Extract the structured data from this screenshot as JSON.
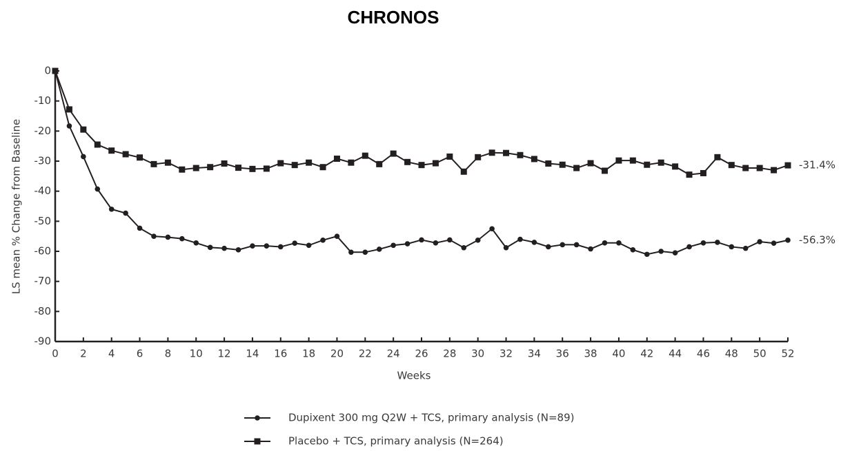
{
  "chart_data": {
    "type": "line",
    "title": "CHRONOS",
    "x_label": "Weeks",
    "y_label": "LS mean % Change from Baseline",
    "x": [
      0,
      1,
      2,
      3,
      4,
      5,
      6,
      7,
      8,
      9,
      10,
      11,
      12,
      13,
      14,
      15,
      16,
      17,
      18,
      19,
      20,
      21,
      22,
      23,
      24,
      25,
      26,
      27,
      28,
      29,
      30,
      31,
      32,
      33,
      34,
      35,
      36,
      37,
      38,
      39,
      40,
      41,
      42,
      43,
      44,
      45,
      46,
      47,
      48,
      49,
      50,
      51,
      52
    ],
    "series": [
      {
        "name": "Dupixent 300 mg Q2W + TCS, primary analysis (N=89)",
        "color": "#231f20",
        "marker": "circle",
        "end_label": "-56.3%",
        "values": [
          0,
          -18.3,
          -28.5,
          -39.3,
          -46,
          -47.3,
          -52.3,
          -55,
          -55.3,
          -55.8,
          -57.2,
          -58.7,
          -59,
          -59.5,
          -58.2,
          -58.2,
          -58.5,
          -57.3,
          -58,
          -56.3,
          -55,
          -60.3,
          -60.3,
          -59.3,
          -58,
          -57.5,
          -56.2,
          -57.2,
          -56.2,
          -58.8,
          -56.3,
          -52.5,
          -58.8,
          -56,
          -57,
          -58.5,
          -57.8,
          -57.8,
          -59.2,
          -57.2,
          -57.2,
          -59.5,
          -61,
          -60,
          -60.5,
          -58.5,
          -57.2,
          -57,
          -58.5,
          -59,
          -56.8,
          -57.3,
          -56.3
        ]
      },
      {
        "name": "Placebo + TCS, primary analysis (N=264)",
        "color": "#231f20",
        "marker": "square",
        "end_label": "-31.4%",
        "values": [
          0,
          -12.8,
          -19.5,
          -24.5,
          -26.5,
          -27.7,
          -28.8,
          -31,
          -30.5,
          -32.8,
          -32.3,
          -32,
          -30.8,
          -32.2,
          -32.6,
          -32.5,
          -30.7,
          -31.3,
          -30.5,
          -32,
          -29.2,
          -30.5,
          -28.2,
          -31,
          -27.5,
          -30.3,
          -31.3,
          -30.7,
          -28.5,
          -33.5,
          -28.7,
          -27.2,
          -27.3,
          -28,
          -29.3,
          -30.8,
          -31.2,
          -32.3,
          -30.7,
          -33.2,
          -29.8,
          -29.8,
          -31.2,
          -30.5,
          -31.8,
          -34.5,
          -34,
          -28.7,
          -31.3,
          -32.3,
          -32.3,
          -33,
          -31.4
        ]
      }
    ],
    "xlim": [
      0,
      52
    ],
    "xticks": [
      0,
      2,
      4,
      6,
      8,
      10,
      12,
      14,
      16,
      18,
      20,
      22,
      24,
      26,
      28,
      30,
      32,
      34,
      36,
      38,
      40,
      42,
      44,
      46,
      48,
      50,
      52
    ],
    "ylim": [
      -90,
      0
    ],
    "yticks": [
      0,
      -10,
      -20,
      -30,
      -40,
      -50,
      -60,
      -70,
      -80,
      -90
    ],
    "grid": false,
    "legend": "bottom"
  }
}
